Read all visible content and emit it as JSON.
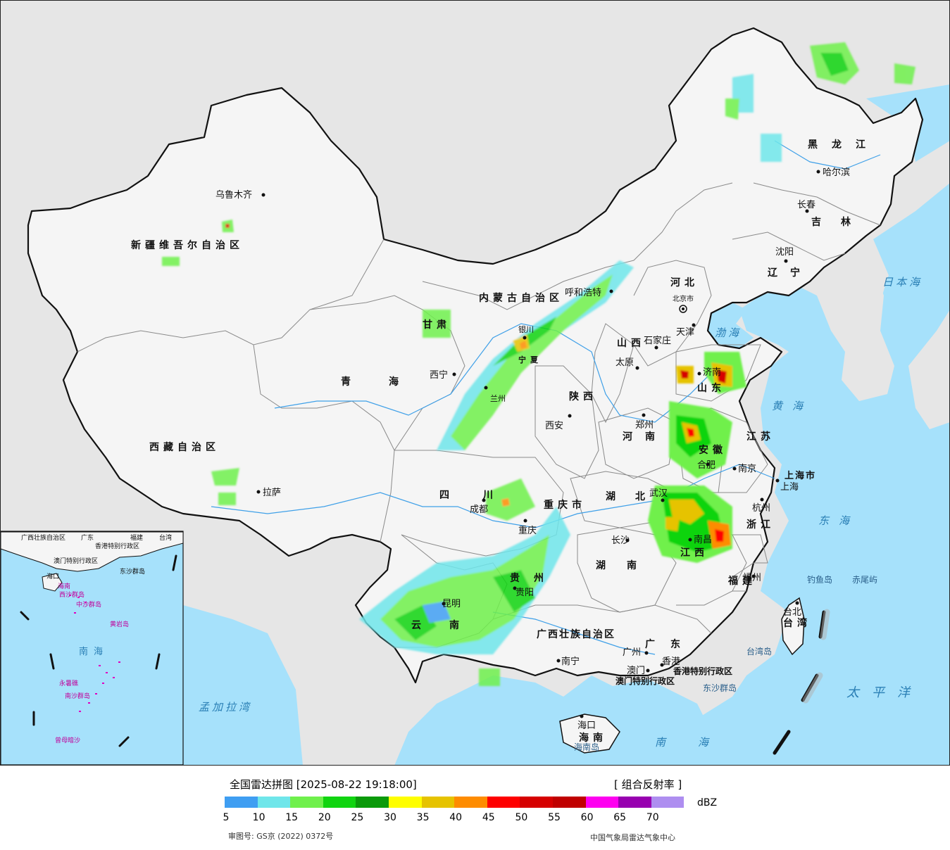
{
  "title": "全国雷达拼图 [2025-08-22 19:18:00]",
  "product": "[ 组合反射率 ]",
  "unit": "dBZ",
  "approval": "审图号: GS京 (2022) 0372号",
  "credit": "中国气象局雷达气象中心",
  "colors": {
    "ocean": "#a6e1fb",
    "foreign_land": "#e6e6e6",
    "china_land": "#f5f5f5",
    "border": "#111111",
    "province_border": "#8a8a8a",
    "river": "#3fa0e8"
  },
  "scale": {
    "colors": [
      "#3f9ef2",
      "#6fe6ea",
      "#6ff04c",
      "#10d410",
      "#0a9a0a",
      "#fefe00",
      "#e6c300",
      "#fe8c00",
      "#fe0000",
      "#d60000",
      "#c00000",
      "#fe00f0",
      "#9800b0",
      "#ae8ef0"
    ],
    "ticks": [
      "5",
      "10",
      "15",
      "20",
      "25",
      "30",
      "35",
      "40",
      "45",
      "50",
      "55",
      "60",
      "65",
      "70"
    ]
  },
  "regions": [
    {
      "name": "新疆维吾尔自治区"
    },
    {
      "name": "西藏自治区"
    },
    {
      "name": "青海"
    },
    {
      "name": "甘肃"
    },
    {
      "name": "内蒙古自治区"
    },
    {
      "name": "黑龙江"
    },
    {
      "name": "吉林"
    },
    {
      "name": "辽宁"
    },
    {
      "name": "河北"
    },
    {
      "name": "山西"
    },
    {
      "name": "陕西"
    },
    {
      "name": "山东"
    },
    {
      "name": "河南"
    },
    {
      "name": "江苏"
    },
    {
      "name": "安徽"
    },
    {
      "name": "湖北"
    },
    {
      "name": "四川"
    },
    {
      "name": "重庆市"
    },
    {
      "name": "贵州"
    },
    {
      "name": "云南"
    },
    {
      "name": "广西壮族自治区"
    },
    {
      "name": "广东"
    },
    {
      "name": "湖南"
    },
    {
      "name": "江西"
    },
    {
      "name": "浙江"
    },
    {
      "name": "福建"
    },
    {
      "name": "台湾"
    },
    {
      "name": "海南"
    },
    {
      "name": "宁夏"
    }
  ],
  "cities": [
    {
      "name": "乌鲁木齐"
    },
    {
      "name": "拉萨"
    },
    {
      "name": "西宁"
    },
    {
      "name": "兰州"
    },
    {
      "name": "银川"
    },
    {
      "name": "呼和浩特"
    },
    {
      "name": "哈尔滨"
    },
    {
      "name": "长春"
    },
    {
      "name": "沈阳"
    },
    {
      "name": "北京市"
    },
    {
      "name": "天津"
    },
    {
      "name": "石家庄"
    },
    {
      "name": "太原"
    },
    {
      "name": "济南"
    },
    {
      "name": "郑州"
    },
    {
      "name": "西安"
    },
    {
      "name": "成都"
    },
    {
      "name": "重庆"
    },
    {
      "name": "武汉"
    },
    {
      "name": "合肥"
    },
    {
      "name": "南京"
    },
    {
      "name": "上海"
    },
    {
      "name": "上海市"
    },
    {
      "name": "杭州"
    },
    {
      "name": "南昌"
    },
    {
      "name": "长沙"
    },
    {
      "name": "贵阳"
    },
    {
      "name": "昆明"
    },
    {
      "name": "南宁"
    },
    {
      "name": "广州"
    },
    {
      "name": "福州"
    },
    {
      "name": "台北"
    },
    {
      "name": "海口"
    },
    {
      "name": "澳门"
    },
    {
      "name": "香港"
    }
  ],
  "seas": [
    {
      "name": "日本海"
    },
    {
      "name": "渤海"
    },
    {
      "name": "黄海"
    },
    {
      "name": "东海"
    },
    {
      "name": "南海"
    },
    {
      "name": "太平洋"
    },
    {
      "name": "孟加拉湾"
    }
  ],
  "islands": [
    {
      "name": "钓鱼岛"
    },
    {
      "name": "赤尾屿"
    },
    {
      "name": "东沙群岛"
    },
    {
      "name": "海南岛"
    },
    {
      "name": "台湾岛"
    },
    {
      "name": "香港特别行政区"
    },
    {
      "name": "澳门特别行政区"
    }
  ],
  "inset": {
    "labels": [
      {
        "name": "广西壮族自治区"
      },
      {
        "name": "广东"
      },
      {
        "name": "福建"
      },
      {
        "name": "台湾"
      },
      {
        "name": "香港特别行政区"
      },
      {
        "name": "澳门特别行政区"
      },
      {
        "name": "东沙群岛"
      },
      {
        "name": "海口"
      },
      {
        "name": "海南"
      },
      {
        "name": "西沙群岛"
      },
      {
        "name": "中沙群岛"
      },
      {
        "name": "黄岩岛"
      },
      {
        "name": "南海"
      },
      {
        "name": "南沙群岛"
      },
      {
        "name": "永暑礁"
      },
      {
        "name": "曾母暗沙"
      }
    ]
  }
}
